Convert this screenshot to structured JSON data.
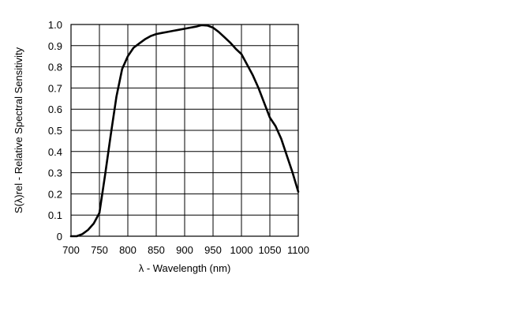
{
  "chart_data": {
    "type": "line",
    "xlabel": "λ - Wavelength (nm)",
    "ylabel": "S(λ)rel - Relative Spectral Sensitivity",
    "xlim": [
      700,
      1100
    ],
    "ylim": [
      0,
      1.0
    ],
    "xticks": [
      700,
      750,
      800,
      850,
      900,
      950,
      1000,
      1050,
      1100
    ],
    "xtick_labels": [
      "700",
      "750",
      "800",
      "850",
      "900",
      "950",
      "1000",
      "1050",
      "1100"
    ],
    "yticks": [
      0,
      0.1,
      0.2,
      0.3,
      0.4,
      0.5,
      0.6,
      0.7,
      0.8,
      0.9,
      1.0
    ],
    "ytick_labels": [
      "0",
      "0.1",
      "0.2",
      "0.3",
      "0.4",
      "0.5",
      "0.6",
      "0.7",
      "0.8",
      "0.9",
      "1.0"
    ],
    "grid": true,
    "series": [
      {
        "x": [
          700,
          710,
          720,
          730,
          740,
          750,
          760,
          770,
          780,
          790,
          800,
          810,
          820,
          830,
          840,
          850,
          860,
          870,
          880,
          890,
          900,
          910,
          920,
          930,
          940,
          950,
          960,
          970,
          980,
          990,
          1000,
          1010,
          1020,
          1030,
          1040,
          1050,
          1060,
          1070,
          1080,
          1090,
          1100
        ],
        "y": [
          0.0,
          0.0,
          0.01,
          0.03,
          0.06,
          0.11,
          0.29,
          0.48,
          0.66,
          0.79,
          0.85,
          0.89,
          0.91,
          0.93,
          0.945,
          0.955,
          0.96,
          0.965,
          0.97,
          0.975,
          0.98,
          0.985,
          0.99,
          0.997,
          0.995,
          0.985,
          0.965,
          0.94,
          0.915,
          0.885,
          0.86,
          0.81,
          0.76,
          0.7,
          0.63,
          0.56,
          0.52,
          0.46,
          0.38,
          0.3,
          0.21
        ]
      }
    ]
  }
}
